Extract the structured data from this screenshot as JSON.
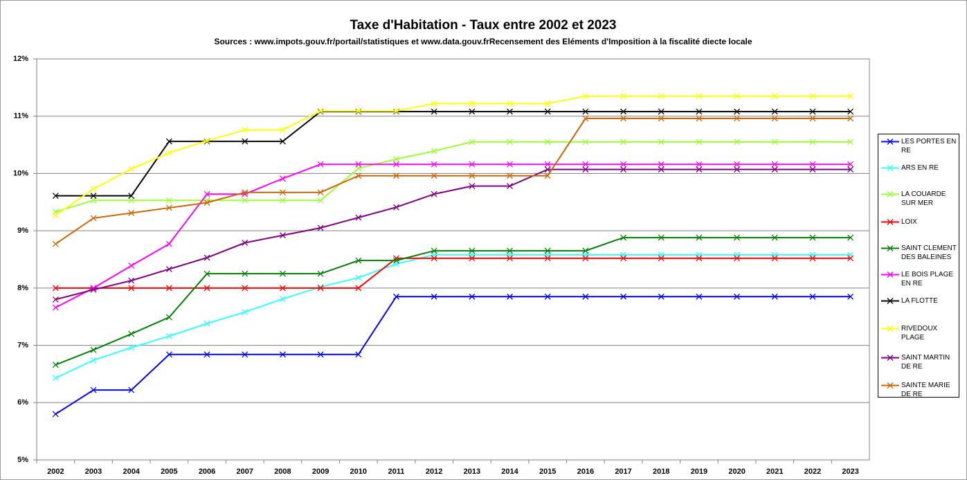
{
  "chart_data": {
    "type": "line",
    "title": "Taxe d'Habitation - Taux entre 2002 et 2023",
    "subtitle": "Sources : www.impots.gouv.fr/portail/statistiques et www.data.gouv.frRecensement des Eléments d'Imposition à la fiscalité diecte locale",
    "categories": [
      "2002",
      "2003",
      "2004",
      "2005",
      "2006",
      "2007",
      "2008",
      "2009",
      "2010",
      "2011",
      "2012",
      "2013",
      "2014",
      "2015",
      "2016",
      "2017",
      "2018",
      "2019",
      "2020",
      "2021",
      "2022",
      "2023"
    ],
    "ylim": [
      5,
      12
    ],
    "yticks": [
      {
        "value": 5,
        "label": "5%"
      },
      {
        "value": 6,
        "label": "6%"
      },
      {
        "value": 7,
        "label": "7%"
      },
      {
        "value": 8,
        "label": "8%"
      },
      {
        "value": 9,
        "label": "9%"
      },
      {
        "value": 10,
        "label": "10%"
      },
      {
        "value": 11,
        "label": "11%"
      },
      {
        "value": 12,
        "label": "12%"
      }
    ],
    "grid": true,
    "legend": "right",
    "series": [
      {
        "name": "LES PORTES EN RE",
        "color": "#0000ff",
        "values": [
          5.8,
          6.22,
          6.22,
          6.84,
          6.84,
          6.84,
          6.84,
          6.84,
          6.84,
          7.85,
          7.85,
          7.85,
          7.85,
          7.85,
          7.85,
          7.85,
          7.85,
          7.85,
          7.85,
          7.85,
          7.85,
          7.85
        ]
      },
      {
        "name": "ARS EN RE",
        "color": "#33ffff",
        "values": [
          6.43,
          6.74,
          6.96,
          7.16,
          7.38,
          7.58,
          7.81,
          8.02,
          8.18,
          8.42,
          8.58,
          8.58,
          8.58,
          8.58,
          8.58,
          8.58,
          8.58,
          8.58,
          8.58,
          8.58,
          8.58,
          8.58
        ]
      },
      {
        "name": "LA COUARDE SUR MER",
        "color": "#99ff33",
        "values": [
          9.33,
          9.53,
          9.53,
          9.53,
          9.53,
          9.53,
          9.53,
          9.53,
          10.09,
          10.25,
          10.39,
          10.55,
          10.55,
          10.55,
          10.55,
          10.55,
          10.55,
          10.55,
          10.55,
          10.55,
          10.55,
          10.55
        ]
      },
      {
        "name": "LOIX",
        "color": "#ff0000",
        "values": [
          8.0,
          8.0,
          8.0,
          8.0,
          8.0,
          8.0,
          8.0,
          8.0,
          8.0,
          8.52,
          8.52,
          8.52,
          8.52,
          8.52,
          8.52,
          8.52,
          8.52,
          8.52,
          8.52,
          8.52,
          8.52,
          8.52
        ]
      },
      {
        "name": "SAINT CLEMENT DES BALEINES",
        "color": "#008000",
        "values": [
          6.66,
          6.92,
          7.2,
          7.49,
          8.25,
          8.25,
          8.25,
          8.25,
          8.48,
          8.48,
          8.65,
          8.65,
          8.65,
          8.65,
          8.65,
          8.88,
          8.88,
          8.88,
          8.88,
          8.88,
          8.88,
          8.88
        ]
      },
      {
        "name": "LE BOIS PLAGE EN RE",
        "color": "#ff00ff",
        "values": [
          7.66,
          8.0,
          8.39,
          8.77,
          9.64,
          9.64,
          9.91,
          10.16,
          10.16,
          10.16,
          10.16,
          10.16,
          10.16,
          10.16,
          10.16,
          10.16,
          10.16,
          10.16,
          10.16,
          10.16,
          10.16,
          10.16
        ]
      },
      {
        "name": "LA FLOTTE",
        "color": "#000000",
        "values": [
          9.61,
          9.61,
          9.61,
          10.56,
          10.56,
          10.56,
          10.56,
          11.08,
          11.08,
          11.08,
          11.08,
          11.08,
          11.08,
          11.08,
          11.08,
          11.08,
          11.08,
          11.08,
          11.08,
          11.08,
          11.08,
          11.08
        ]
      },
      {
        "name": "RIVEDOUX PLAGE",
        "color": "#ffff00",
        "values": [
          9.27,
          9.73,
          10.08,
          10.36,
          10.57,
          10.76,
          10.76,
          11.09,
          11.09,
          11.09,
          11.22,
          11.22,
          11.22,
          11.22,
          11.35,
          11.35,
          11.35,
          11.35,
          11.35,
          11.35,
          11.35,
          11.35
        ]
      },
      {
        "name": "SAINT MARTIN DE RE",
        "color": "#800080",
        "values": [
          7.8,
          7.97,
          8.13,
          8.33,
          8.53,
          8.79,
          8.92,
          9.05,
          9.23,
          9.41,
          9.64,
          9.78,
          9.78,
          10.07,
          10.07,
          10.07,
          10.07,
          10.07,
          10.07,
          10.07,
          10.07,
          10.07
        ]
      },
      {
        "name": "SAINTE MARIE DE RE",
        "color": "#cc6600",
        "values": [
          8.77,
          9.22,
          9.31,
          9.4,
          9.49,
          9.67,
          9.67,
          9.67,
          9.96,
          9.96,
          9.96,
          9.96,
          9.96,
          9.96,
          10.96,
          10.96,
          10.96,
          10.96,
          10.96,
          10.96,
          10.96,
          10.96
        ]
      }
    ]
  }
}
